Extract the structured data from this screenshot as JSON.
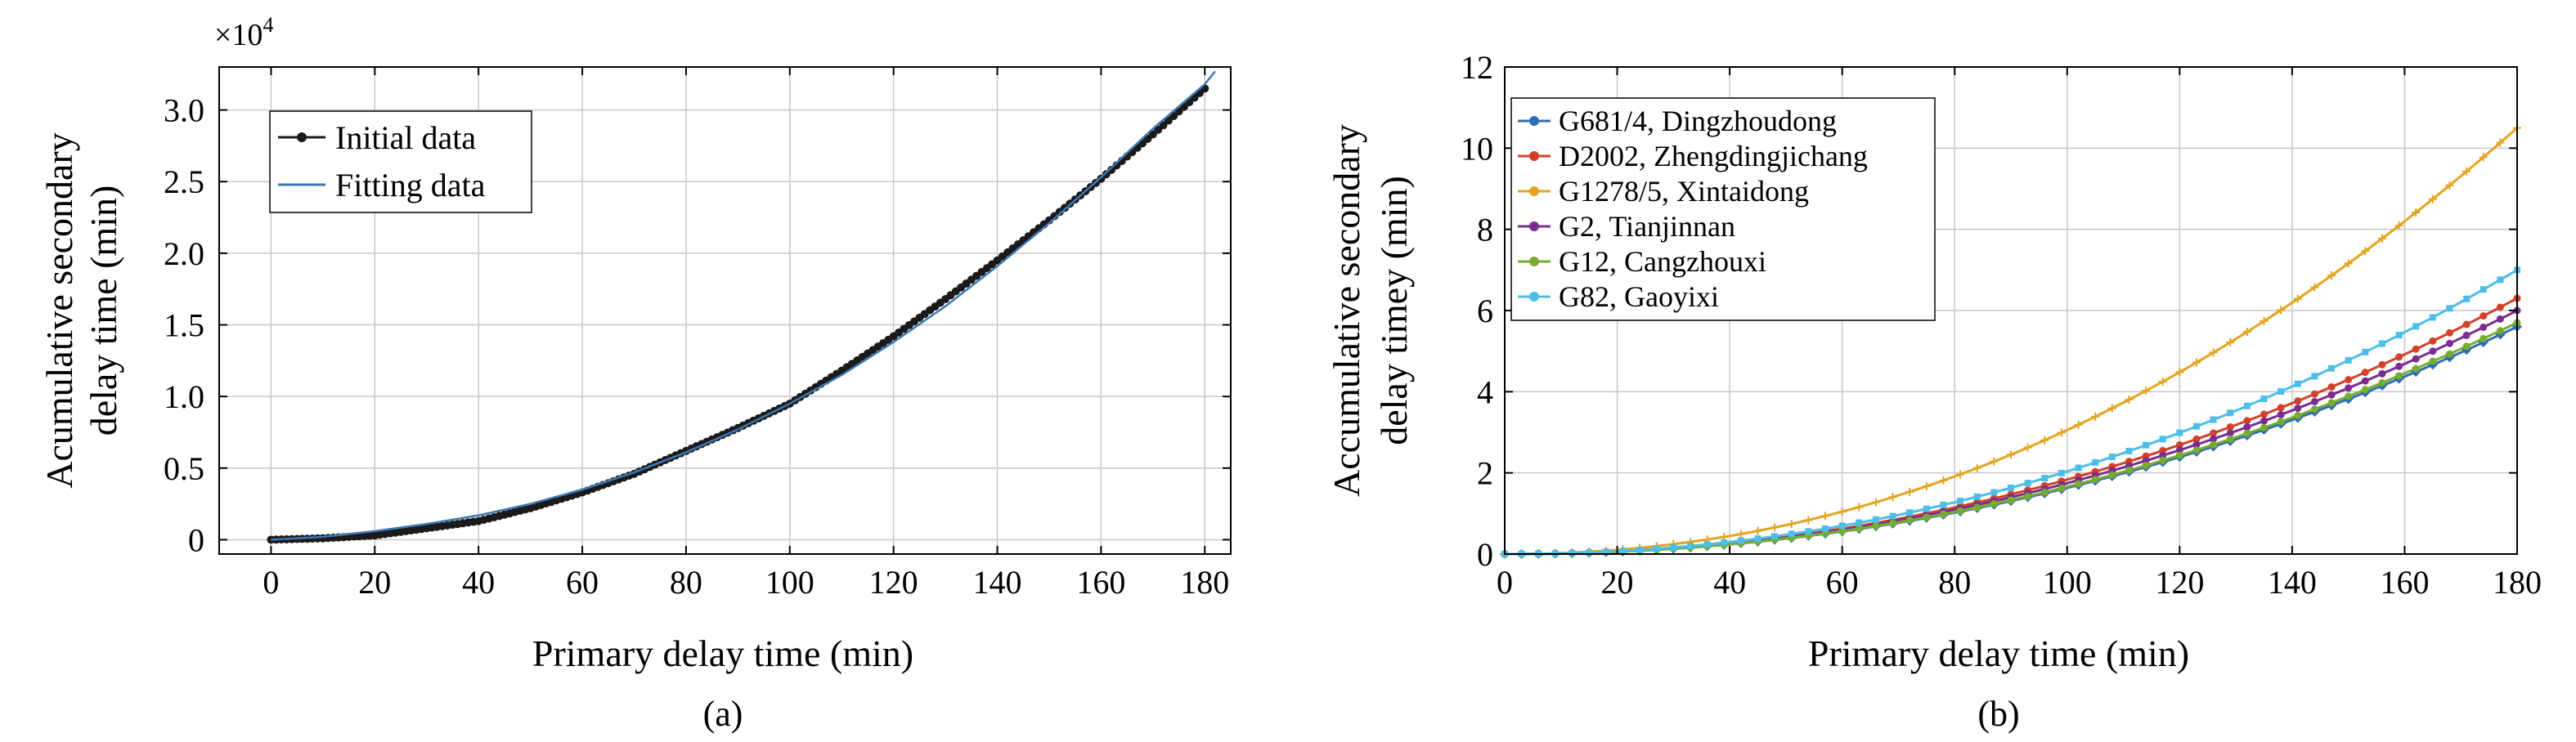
{
  "chart_data": [
    {
      "type": "line",
      "panel_label": "(a)",
      "xlabel": "Primary delay time (min)",
      "ylabel": [
        "Acumulative secondary",
        "delay time (min)"
      ],
      "y_multiplier_base": "×10",
      "y_multiplier_exp": "4",
      "xlim": [
        -10,
        185
      ],
      "ylim": [
        -0.1,
        3.3
      ],
      "xticks": [
        0,
        20,
        40,
        60,
        80,
        100,
        120,
        140,
        160,
        180
      ],
      "xtick_labels": [
        "0",
        "20",
        "40",
        "60",
        "80",
        "100",
        "120",
        "140",
        "160",
        "180"
      ],
      "yticks": [
        0,
        0.5,
        1.0,
        1.5,
        2.0,
        2.5,
        3.0
      ],
      "ytick_labels": [
        "0",
        "0.5",
        "1.0",
        "1.5",
        "2.0",
        "2.5",
        "3.0"
      ],
      "grid": true,
      "legend_position": "top-left",
      "series": [
        {
          "name": "Initial data",
          "color": "#1a1a1a",
          "marker": "circle",
          "x": [
            0,
            10,
            20,
            30,
            40,
            50,
            60,
            70,
            80,
            90,
            100,
            110,
            120,
            130,
            140,
            150,
            160,
            170,
            180
          ],
          "y": [
            0,
            0.01,
            0.03,
            0.08,
            0.13,
            0.22,
            0.33,
            0.46,
            0.62,
            0.78,
            0.95,
            1.18,
            1.42,
            1.68,
            1.95,
            2.23,
            2.52,
            2.83,
            3.15
          ]
        },
        {
          "name": "Fitting data",
          "color": "#3a78b5",
          "marker": "none",
          "x": [
            0,
            10,
            20,
            30,
            40,
            50,
            60,
            70,
            80,
            90,
            100,
            110,
            120,
            130,
            140,
            150,
            160,
            170,
            180,
            182
          ],
          "y": [
            0,
            0.02,
            0.06,
            0.11,
            0.17,
            0.25,
            0.35,
            0.47,
            0.61,
            0.77,
            0.95,
            1.15,
            1.38,
            1.63,
            1.91,
            2.21,
            2.53,
            2.87,
            3.18,
            3.27
          ]
        }
      ]
    },
    {
      "type": "line",
      "panel_label": "(b)",
      "xlabel": "Primary delay time (min)",
      "ylabel": [
        "Accumulative secondary",
        "delay timey (min)"
      ],
      "xlim": [
        0,
        180
      ],
      "ylim": [
        0,
        12
      ],
      "xticks": [
        0,
        20,
        40,
        60,
        80,
        100,
        120,
        140,
        160,
        180
      ],
      "xtick_labels": [
        "0",
        "20",
        "40",
        "60",
        "80",
        "100",
        "120",
        "140",
        "160",
        "180"
      ],
      "yticks": [
        0,
        2,
        4,
        6,
        8,
        10,
        12
      ],
      "ytick_labels": [
        "0",
        "2",
        "4",
        "6",
        "8",
        "10",
        "12"
      ],
      "grid": true,
      "legend_position": "top-left",
      "series": [
        {
          "name": "G681/4, Dingzhoudong",
          "color": "#2e6db4",
          "marker": "diamond",
          "end_value": 5.6
        },
        {
          "name": "D2002, Zhengdingjichang",
          "color": "#d2402a",
          "marker": "circle",
          "end_value": 6.3
        },
        {
          "name": "G1278/5, Xintaidong",
          "color": "#e3a41e",
          "marker": "plus",
          "end_value": 10.5
        },
        {
          "name": "G2, Tianjinnan",
          "color": "#7a2d8f",
          "marker": "circle",
          "end_value": 6.0
        },
        {
          "name": "G12, Cangzhouxi",
          "color": "#77ac30",
          "marker": "circle",
          "end_value": 5.7
        },
        {
          "name": "G82, Gaoyixi",
          "color": "#4dbee8",
          "marker": "square",
          "end_value": 7.0
        }
      ]
    }
  ]
}
